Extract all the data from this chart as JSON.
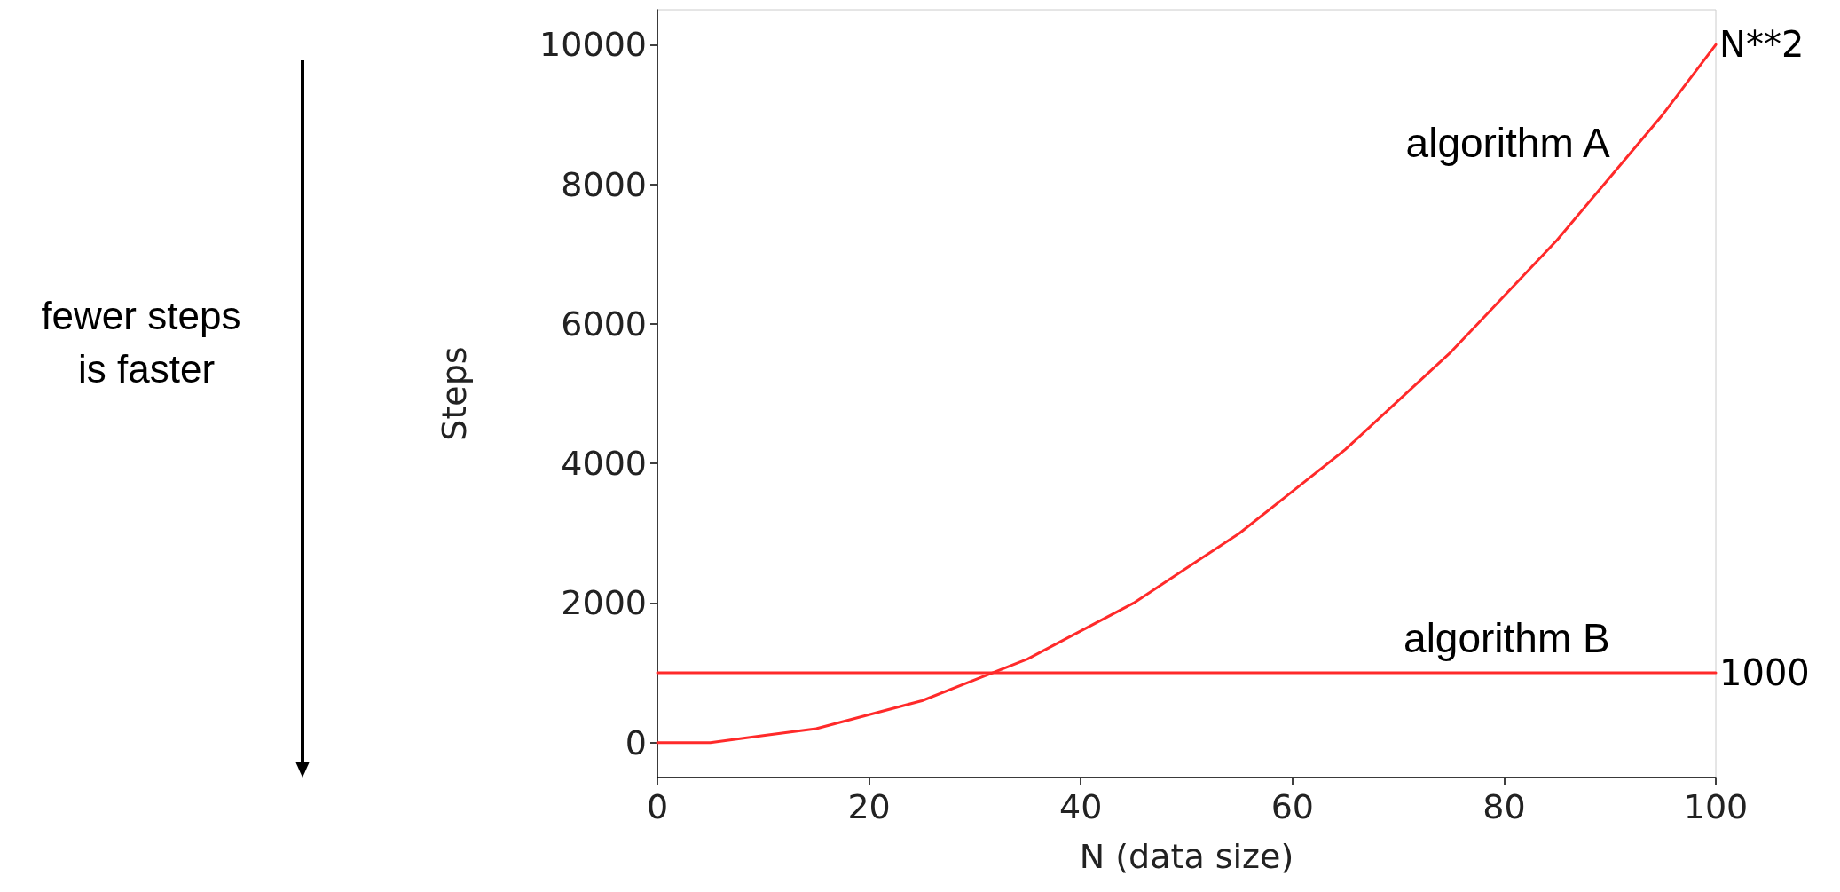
{
  "chart_data": {
    "type": "line",
    "xlabel": "N (data size)",
    "ylabel": "Steps",
    "xlim": [
      0,
      100
    ],
    "xticks": [
      0,
      20,
      40,
      60,
      80,
      100
    ],
    "ylim": [
      -500,
      10500
    ],
    "yticks": [
      0,
      2000,
      4000,
      6000,
      8000,
      10000
    ],
    "x": [
      0,
      5,
      10,
      15,
      20,
      25,
      30,
      35,
      40,
      45,
      50,
      55,
      60,
      65,
      70,
      75,
      80,
      85,
      90,
      95,
      100
    ],
    "series": [
      {
        "name": "algorithm A",
        "color": "#ff2a2a",
        "values": [
          0,
          0,
          100,
          200,
          400,
          600,
          900,
          1200,
          1600,
          2000,
          2500,
          3000,
          3600,
          4200,
          4900,
          5600,
          6400,
          7200,
          8100,
          9000,
          10000
        ]
      },
      {
        "name": "algorithm B",
        "color": "#ff2a2a",
        "values": [
          1000,
          1000,
          1000,
          1000,
          1000,
          1000,
          1000,
          1000,
          1000,
          1000,
          1000,
          1000,
          1000,
          1000,
          1000,
          1000,
          1000,
          1000,
          1000,
          1000,
          1000
        ]
      }
    ],
    "annotations": [
      {
        "text": "N**2",
        "x": 100,
        "y": 10000
      },
      {
        "text": "1000",
        "x": 100,
        "y": 1000
      },
      "fewer steps is faster"
    ],
    "grid": false
  }
}
